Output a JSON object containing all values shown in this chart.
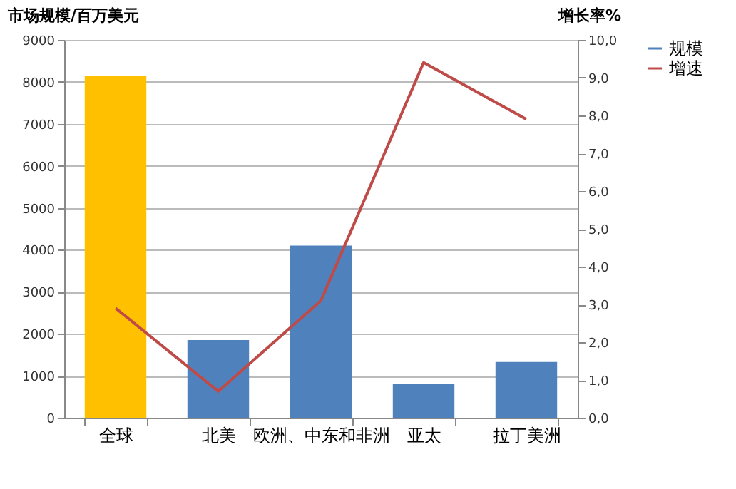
{
  "chart_data": {
    "type": "bar",
    "categories": [
      "全球",
      "北美",
      "欧洲、中东和非洲",
      "亚太",
      "拉丁美洲"
    ],
    "series": [
      {
        "name": "规模",
        "color": "#4f81bd",
        "colors": [
          "#ffc000",
          "#4f81bd",
          "#4f81bd",
          "#4f81bd",
          "#4f81bd"
        ],
        "values": [
          8150,
          1850,
          4100,
          800,
          1330
        ]
      },
      {
        "name": "增速",
        "type": "line",
        "axis": "y2",
        "color": "#be4b48",
        "values": [
          2.9,
          0.7,
          3.1,
          9.4,
          7.9
        ]
      }
    ],
    "ylabel": "市场规模/百万美元",
    "y2label": "增长率%",
    "ylim": [
      0,
      9000
    ],
    "yticks": [
      0,
      1000,
      2000,
      3000,
      4000,
      5000,
      6000,
      7000,
      8000,
      9000
    ],
    "y2lim": [
      0,
      10
    ],
    "y2ticks": [
      {
        "value": 0,
        "label": "0,0"
      },
      {
        "value": 1,
        "label": "1,0"
      },
      {
        "value": 2,
        "label": "2,0"
      },
      {
        "value": 3,
        "label": "3,0"
      },
      {
        "value": 4,
        "label": "4,0"
      },
      {
        "value": 5,
        "label": "5,0"
      },
      {
        "value": 6,
        "label": "6,0"
      },
      {
        "value": 7,
        "label": "7,0"
      },
      {
        "value": 8,
        "label": "8,0"
      },
      {
        "value": 9,
        "label": "9,0"
      },
      {
        "value": 10,
        "label": "10,0"
      }
    ],
    "grid": "y",
    "legend": "right"
  }
}
